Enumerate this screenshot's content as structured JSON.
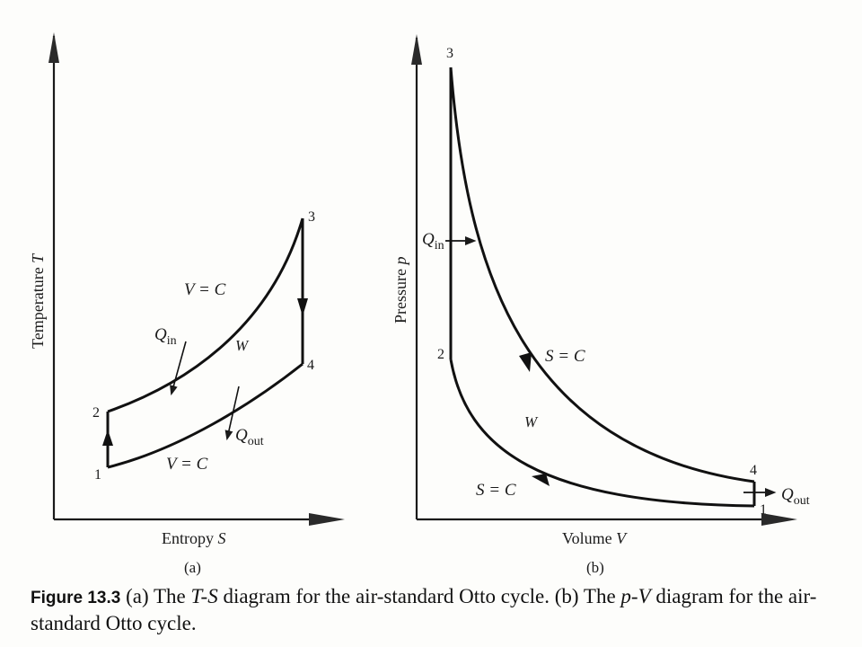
{
  "diagram_a": {
    "y_axis_label": "Temperature",
    "y_axis_symbol": "T",
    "x_axis_label": "Entropy",
    "x_axis_symbol": "S",
    "panel_label": "(a)",
    "points": [
      "1",
      "2",
      "3",
      "4"
    ],
    "top_process_label": "V = C",
    "bottom_process_label": "V = C",
    "heat_in": {
      "symbol": "Q",
      "subscript": "in"
    },
    "heat_out": {
      "symbol": "Q",
      "subscript": "out"
    },
    "work_label": "W"
  },
  "diagram_b": {
    "y_axis_label": "Pressure",
    "y_axis_symbol": "p",
    "x_axis_label": "Volume",
    "x_axis_symbol": "V",
    "panel_label": "(b)",
    "points": [
      "1",
      "2",
      "3",
      "4"
    ],
    "upper_curve_label": "S = C",
    "lower_curve_label": "S = C",
    "heat_in": {
      "symbol": "Q",
      "subscript": "in"
    },
    "heat_out": {
      "symbol": "Q",
      "subscript": "out"
    },
    "work_label": "W"
  },
  "caption": {
    "figure_number": "Figure 13.3",
    "text_part1": " (a) The ",
    "ts_term": "T-S",
    "text_part2": " diagram for the air-standard Otto cycle. (b) The ",
    "pv_term": "p-V",
    "text_part3": " diagram for the air-standard Otto cycle."
  }
}
